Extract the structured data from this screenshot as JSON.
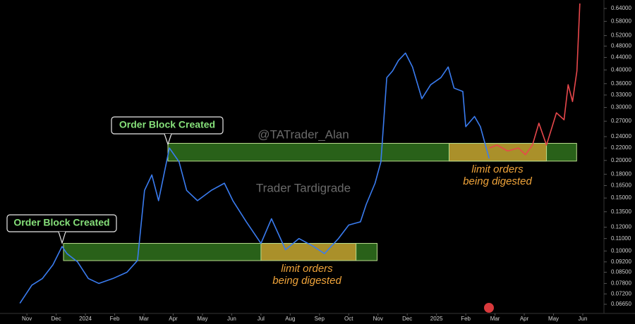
{
  "chart_data": {
    "type": "line",
    "log_scale": true,
    "xlim": [
      -0.92,
      19.7
    ],
    "xticks": [
      {
        "value": 0,
        "label": "Nov"
      },
      {
        "value": 1,
        "label": "Dec"
      },
      {
        "value": 2,
        "label": "2024"
      },
      {
        "value": 3,
        "label": "Feb"
      },
      {
        "value": 4,
        "label": "Mar"
      },
      {
        "value": 5,
        "label": "Apr"
      },
      {
        "value": 6,
        "label": "May"
      },
      {
        "value": 7,
        "label": "Jun"
      },
      {
        "value": 8,
        "label": "Jul"
      },
      {
        "value": 9,
        "label": "Aug"
      },
      {
        "value": 10,
        "label": "Sep"
      },
      {
        "value": 11,
        "label": "Oct"
      },
      {
        "value": 12,
        "label": "Nov"
      },
      {
        "value": 13,
        "label": "Dec"
      },
      {
        "value": 14,
        "label": "2025"
      },
      {
        "value": 15,
        "label": "Feb"
      },
      {
        "value": 16,
        "label": "Mar"
      },
      {
        "value": 17,
        "label": "Apr"
      },
      {
        "value": 18,
        "label": "May"
      },
      {
        "value": 19,
        "label": "Jun"
      }
    ],
    "ylim": [
      0.062,
      0.683
    ],
    "yticks": [
      {
        "value": 0.64,
        "label": "0.64000"
      },
      {
        "value": 0.58,
        "label": "0.58000"
      },
      {
        "value": 0.52,
        "label": "0.52000"
      },
      {
        "value": 0.48,
        "label": "0.48000"
      },
      {
        "value": 0.44,
        "label": "0.44000"
      },
      {
        "value": 0.4,
        "label": "0.40000"
      },
      {
        "value": 0.36,
        "label": "0.36000"
      },
      {
        "value": 0.33,
        "label": "0.33000"
      },
      {
        "value": 0.3,
        "label": "0.30000"
      },
      {
        "value": 0.27,
        "label": "0.27000"
      },
      {
        "value": 0.24,
        "label": "0.24000"
      },
      {
        "value": 0.22,
        "label": "0.22000"
      },
      {
        "value": 0.2,
        "label": "0.20000"
      },
      {
        "value": 0.18,
        "label": "0.18000"
      },
      {
        "value": 0.165,
        "label": "0.16500"
      },
      {
        "value": 0.15,
        "label": "0.15000"
      },
      {
        "value": 0.135,
        "label": "0.13500"
      },
      {
        "value": 0.12,
        "label": "0.12000"
      },
      {
        "value": 0.11,
        "label": "0.11000"
      },
      {
        "value": 0.1,
        "label": "0.10000"
      },
      {
        "value": 0.092,
        "label": "0.09200"
      },
      {
        "value": 0.085,
        "label": "0.08500"
      },
      {
        "value": 0.078,
        "label": "0.07800"
      },
      {
        "value": 0.072,
        "label": "0.07200"
      },
      {
        "value": 0.0665,
        "label": "0.06650"
      }
    ],
    "series": [
      {
        "color": "#3a7cf0",
        "x": [
          -0.24,
          0.17,
          0.53,
          0.89,
          1.2,
          1.37,
          1.73,
          2.1,
          2.46,
          2.94,
          3.42,
          3.78,
          4.02,
          4.27,
          4.5,
          4.87,
          5.2,
          5.46,
          5.83,
          6.3,
          6.75,
          7.04,
          7.5,
          8.0,
          8.36,
          8.84,
          9.3,
          9.8,
          10.17,
          10.65,
          11.0,
          11.4,
          11.6,
          11.9,
          12.1,
          12.3,
          12.5,
          12.7,
          12.94,
          13.18,
          13.5,
          13.8,
          14.15,
          14.4,
          14.6,
          14.9,
          15.0,
          15.3,
          15.5,
          15.7,
          15.8
        ],
        "values": [
          0.067,
          0.077,
          0.081,
          0.09,
          0.1035,
          0.098,
          0.092,
          0.081,
          0.078,
          0.081,
          0.085,
          0.093,
          0.159,
          0.179,
          0.147,
          0.22,
          0.198,
          0.159,
          0.147,
          0.159,
          0.168,
          0.147,
          0.125,
          0.106,
          0.128,
          0.101,
          0.11,
          0.1035,
          0.098,
          0.11,
          0.122,
          0.125,
          0.143,
          0.168,
          0.198,
          0.377,
          0.397,
          0.43,
          0.455,
          0.409,
          0.321,
          0.357,
          0.377,
          0.409,
          0.348,
          0.339,
          0.259,
          0.28,
          0.259,
          0.22,
          0.203
        ]
      },
      {
        "color": "#e8484c",
        "x": [
          15.8,
          16.07,
          16.43,
          16.8,
          17.04,
          17.28,
          17.5,
          17.76,
          18.1,
          18.36,
          18.5,
          18.65,
          18.8,
          18.9
        ],
        "values": [
          0.22,
          0.225,
          0.215,
          0.22,
          0.209,
          0.225,
          0.266,
          0.225,
          0.288,
          0.273,
          0.357,
          0.314,
          0.397,
          0.665
        ]
      }
    ],
    "zones": [
      {
        "color": "#2d6b1c",
        "x": [
          1.25,
          11.97
        ],
        "y": [
          0.0929,
          0.106
        ]
      },
      {
        "color": "#2d6b1c",
        "x": [
          4.82,
          18.79
        ],
        "y": [
          0.199,
          0.228
        ]
      },
      {
        "color": "#b8962c",
        "x": [
          8.0,
          11.25
        ],
        "y": [
          0.0929,
          0.106
        ]
      },
      {
        "color": "#b8962c",
        "x": [
          14.43,
          17.76
        ],
        "y": [
          0.199,
          0.228
        ]
      }
    ],
    "annotations": [
      "Order Block Created",
      "Order Block Created"
    ],
    "watermarks": [
      "@TATrader_Alan",
      "Trader Tardigrade"
    ],
    "notes": [
      [
        "limit orders",
        "being digested"
      ],
      [
        "limit orders",
        "being digested"
      ]
    ]
  }
}
